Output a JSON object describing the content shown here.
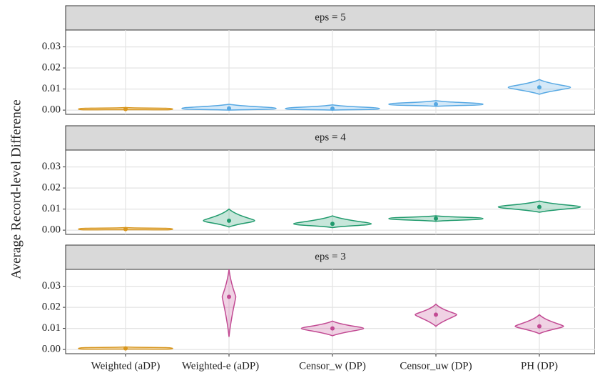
{
  "chart_data": [
    {
      "type": "violin",
      "strip": "eps = 5",
      "ylabel": "Average Record-level Difference",
      "ylim": [
        -0.002,
        0.038
      ],
      "yticks": [
        {
          "value": 0,
          "label": "0.00"
        },
        {
          "value": 0.01,
          "label": "0.01"
        },
        {
          "value": 0.02,
          "label": "0.02"
        },
        {
          "value": 0.03,
          "label": "0.03"
        }
      ],
      "colors": [
        "#d8961d",
        "#56a8e3",
        "#56a8e3",
        "#56a8e3",
        "#56a8e3"
      ],
      "medians": [
        0.0005,
        0.0008,
        0.0007,
        0.0028,
        0.0108
      ],
      "mins": [
        0.0002,
        0.0,
        0.0,
        0.0018,
        0.0075
      ],
      "maxs": [
        0.0012,
        0.0028,
        0.0025,
        0.0045,
        0.0145
      ]
    },
    {
      "type": "violin",
      "strip": "eps = 4",
      "ylim": [
        -0.002,
        0.038
      ],
      "yticks": [
        {
          "value": 0,
          "label": "0.00"
        },
        {
          "value": 0.01,
          "label": "0.01"
        },
        {
          "value": 0.02,
          "label": "0.02"
        },
        {
          "value": 0.03,
          "label": "0.03"
        }
      ],
      "colors": [
        "#d8961d",
        "#1f9a6c",
        "#1f9a6c",
        "#1f9a6c",
        "#1f9a6c"
      ],
      "medians": [
        0.0005,
        0.0045,
        0.003,
        0.0055,
        0.011
      ],
      "mins": [
        0.0002,
        0.0015,
        0.0012,
        0.0042,
        0.0085
      ],
      "maxs": [
        0.0012,
        0.01,
        0.0068,
        0.0068,
        0.0138
      ]
    },
    {
      "type": "violin",
      "strip": "eps = 3",
      "ylim": [
        -0.002,
        0.038
      ],
      "yticks": [
        {
          "value": 0,
          "label": "0.00"
        },
        {
          "value": 0.01,
          "label": "0.01"
        },
        {
          "value": 0.02,
          "label": "0.02"
        },
        {
          "value": 0.03,
          "label": "0.03"
        }
      ],
      "categories": [
        "Weighted (aDP)",
        "Weighted-e (aDP)",
        "Censor_w (DP)",
        "Censor_uw (DP)",
        "PH (DP)"
      ],
      "colors": [
        "#d8961d",
        "#c24a93",
        "#c24a93",
        "#c24a93",
        "#c24a93"
      ],
      "medians": [
        0.0005,
        0.025,
        0.01,
        0.0165,
        0.011
      ],
      "mins": [
        0.0002,
        0.006,
        0.0065,
        0.011,
        0.0075
      ],
      "maxs": [
        0.0012,
        0.038,
        0.0135,
        0.0215,
        0.0165
      ]
    }
  ]
}
